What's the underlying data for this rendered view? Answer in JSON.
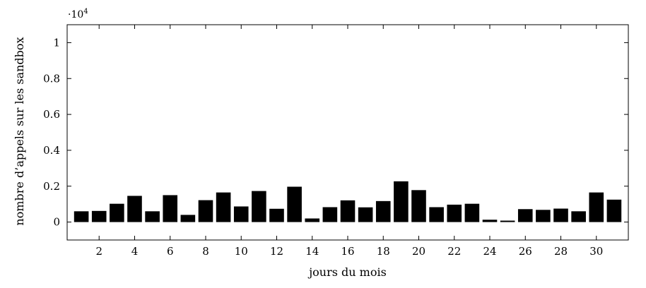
{
  "chart_data": {
    "type": "bar",
    "xlabel": "jours du mois",
    "ylabel": "nombre d’appels sur les sandbox",
    "scale_factor_label": "·10",
    "scale_factor_exponent": "4",
    "x": [
      1,
      2,
      3,
      4,
      5,
      6,
      7,
      8,
      9,
      10,
      11,
      12,
      13,
      14,
      15,
      16,
      17,
      18,
      19,
      20,
      21,
      22,
      23,
      24,
      25,
      26,
      27,
      28,
      29,
      30,
      31
    ],
    "values": [
      600,
      620,
      1020,
      1460,
      600,
      1500,
      400,
      1220,
      1650,
      870,
      1730,
      740,
      1970,
      200,
      830,
      1210,
      820,
      1170,
      2270,
      1780,
      830,
      970,
      1020,
      130,
      80,
      720,
      680,
      750,
      600,
      1650,
      1250
    ],
    "xlim": [
      0.2,
      31.8
    ],
    "ylim": [
      -1000,
      11000
    ],
    "xticks": [
      2,
      4,
      6,
      8,
      10,
      12,
      14,
      16,
      18,
      20,
      22,
      24,
      26,
      28,
      30
    ],
    "yticks": [
      0,
      2000,
      4000,
      6000,
      8000,
      10000
    ],
    "ytick_labels": [
      "0",
      "0.2",
      "0.4",
      "0.6",
      "0.8",
      "1"
    ],
    "bar_color": "#000000",
    "grid": false,
    "legend": "none"
  }
}
